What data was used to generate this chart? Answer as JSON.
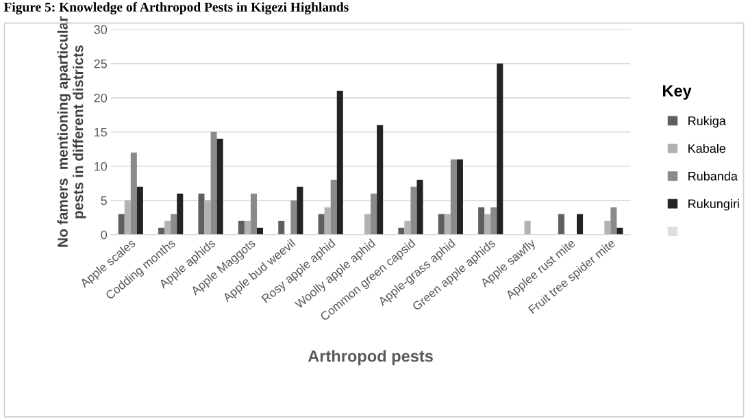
{
  "chart_data": {
    "type": "bar",
    "title": "Figure 5: Knowledge of Arthropod Pests in Kigezi Highlands",
    "xlabel": "Arthropod pests",
    "ylabel": "No famers  mentioning aparticular\npests in different districts",
    "legend_title": "Key",
    "categories": [
      "Apple scales",
      "Codding months",
      "Apple aphids",
      "Apple Maggots",
      "Apple bud weevil",
      "Rosy apple aphid",
      "Woolly apple aphid",
      "Common green capsid",
      "Apple-grass aphid",
      "Green apple aphids",
      "Apple sawfly",
      "Applee rust mite",
      "Fruit tree spider mite"
    ],
    "series": [
      {
        "name": "Rukiga",
        "color": "#5f5f5f",
        "values": [
          3,
          1,
          6,
          2,
          2,
          3,
          0,
          1,
          3,
          4,
          0,
          3,
          0
        ]
      },
      {
        "name": "Kabale",
        "color": "#b2b2b2",
        "values": [
          5,
          2,
          5,
          2,
          0,
          4,
          3,
          2,
          3,
          3,
          2,
          0,
          2
        ]
      },
      {
        "name": "Rubanda",
        "color": "#8a8a8a",
        "values": [
          12,
          3,
          15,
          6,
          5,
          8,
          6,
          7,
          11,
          4,
          0,
          0,
          4
        ]
      },
      {
        "name": "Rukungiri",
        "color": "#232323",
        "values": [
          7,
          6,
          14,
          1,
          7,
          21,
          16,
          8,
          11,
          25,
          0,
          3,
          1
        ]
      },
      {
        "color": "#dedede",
        "values": [
          null,
          null,
          null,
          null,
          null,
          null,
          null,
          null,
          null,
          null,
          null,
          null,
          null
        ]
      }
    ],
    "ylim": [
      0,
      30
    ],
    "yticks": [
      0,
      5,
      10,
      15,
      20,
      25,
      30
    ],
    "grid": "y",
    "legend": "right"
  }
}
